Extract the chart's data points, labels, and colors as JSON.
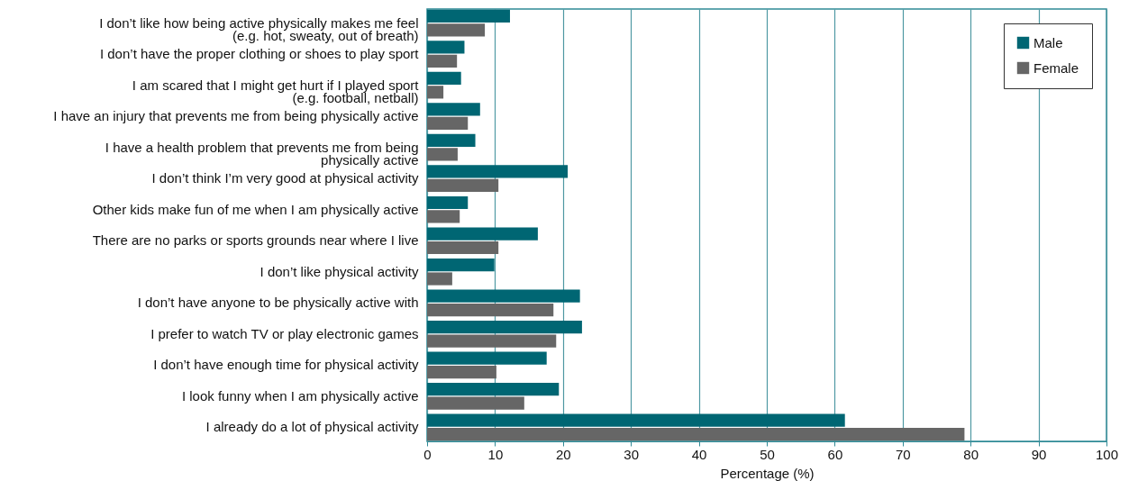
{
  "chart_data": {
    "type": "bar",
    "orientation": "horizontal",
    "xlabel": "Percentage (%)",
    "categories": [
      "I don’t like how being active physically makes me feel\n(e.g. hot, sweaty, out of breath)",
      "I don’t have the proper clothing or shoes to play sport",
      "I am scared that I might get hurt if I played sport\n(e.g. football, netball)",
      "I have an injury that prevents me from being physically active",
      "I have a health problem that prevents me from being\nphysically active",
      "I don’t think I’m very good at physical activity",
      "Other kids make fun of me when I am physically active",
      "There are no parks or sports grounds near where I live",
      "I don’t like physical activity",
      "I don’t have anyone to be physically active with",
      "I prefer to watch TV or play electronic games",
      "I don’t have enough time for physical activity",
      "I look funny when I am physically active",
      "I already do a lot of physical activity"
    ],
    "series": [
      {
        "name": "Male",
        "color": "#006673",
        "values": [
          12.2,
          5.5,
          5.0,
          7.8,
          7.1,
          20.7,
          6.0,
          16.3,
          9.9,
          22.5,
          22.8,
          17.6,
          19.4,
          61.5
        ]
      },
      {
        "name": "Female",
        "color": "#666666",
        "values": [
          8.5,
          4.4,
          2.4,
          6.0,
          4.5,
          10.5,
          4.8,
          10.5,
          3.7,
          18.6,
          19.0,
          10.2,
          14.3,
          79.1
        ]
      }
    ],
    "xlim": [
      0,
      100
    ],
    "xticks": [
      0,
      10,
      20,
      30,
      40,
      50,
      60,
      70,
      80,
      90,
      100
    ],
    "grid": "x",
    "legend": "top right"
  }
}
